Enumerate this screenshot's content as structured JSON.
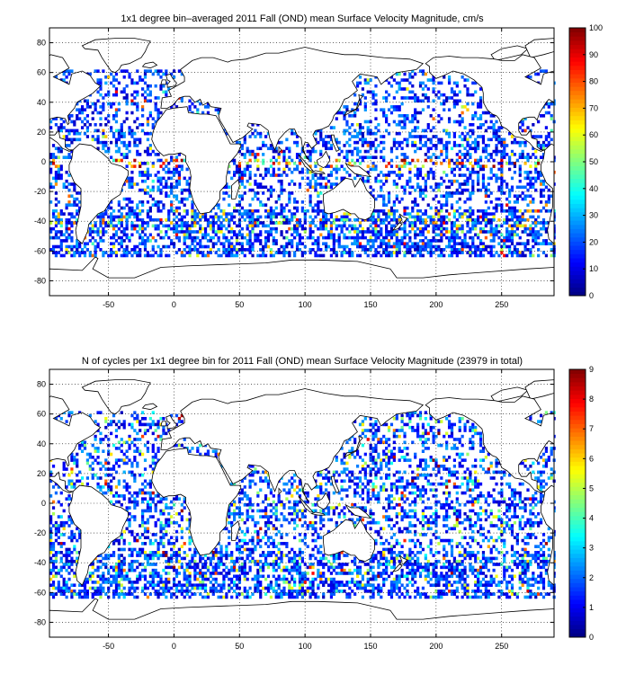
{
  "chart_data": [
    {
      "type": "heatmap",
      "title": "1x1 degree bin–averaged 2011 Fall (OND) mean Surface Velocity Magnitude, cm/s",
      "xlim": [
        -95,
        290
      ],
      "ylim": [
        -90,
        90
      ],
      "xticks": [
        -50,
        0,
        50,
        100,
        150,
        200,
        250
      ],
      "yticks": [
        80,
        60,
        40,
        20,
        0,
        -20,
        -40,
        -60,
        -80
      ],
      "xtick_labels": [
        "-50",
        "0",
        "50",
        "100",
        "150",
        "200",
        "250"
      ],
      "ytick_labels": [
        "80",
        "60",
        "40",
        "20",
        "0",
        "-20",
        "-40",
        "-60",
        "-80"
      ],
      "grid": true,
      "colorbar": {
        "min": 0,
        "max": 100,
        "ticks": [
          0,
          10,
          20,
          30,
          40,
          50,
          60,
          70,
          80,
          90,
          100
        ],
        "tick_labels": [
          "0",
          "10",
          "20",
          "30",
          "40",
          "50",
          "60",
          "70",
          "80",
          "90",
          "100"
        ],
        "colormap": "jet"
      },
      "seed": 11
    },
    {
      "type": "heatmap",
      "title": "N of cycles per 1x1 degree bin for 2011 Fall (OND) mean Surface Velocity Magnitude (23979 in total)",
      "xlim": [
        -95,
        290
      ],
      "ylim": [
        -90,
        90
      ],
      "xticks": [
        -50,
        0,
        50,
        100,
        150,
        200,
        250
      ],
      "yticks": [
        80,
        60,
        40,
        20,
        0,
        -20,
        -40,
        -60,
        -80
      ],
      "xtick_labels": [
        "-50",
        "0",
        "50",
        "100",
        "150",
        "200",
        "250"
      ],
      "ytick_labels": [
        "80",
        "60",
        "40",
        "20",
        "0",
        "-20",
        "-40",
        "-60",
        "-80"
      ],
      "grid": true,
      "colorbar": {
        "min": 0,
        "max": 9,
        "ticks": [
          0,
          1,
          2,
          3,
          4,
          5,
          6,
          7,
          8,
          9
        ],
        "tick_labels": [
          "0",
          "1",
          "2",
          "3",
          "4",
          "5",
          "6",
          "7",
          "8",
          "9"
        ],
        "colormap": "jet"
      },
      "seed": 29
    }
  ]
}
